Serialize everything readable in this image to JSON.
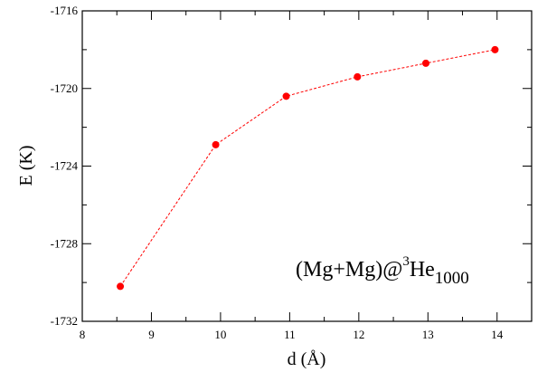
{
  "chart_data": {
    "type": "line",
    "title": "",
    "xlabel": "d (Å)",
    "ylabel": "E (K)",
    "xlim": [
      8,
      14.5
    ],
    "ylim": [
      -1732,
      -1716
    ],
    "x_ticks": [
      8,
      9,
      10,
      11,
      12,
      13,
      14
    ],
    "y_ticks": [
      -1732,
      -1728,
      -1724,
      -1720,
      -1716
    ],
    "grid": false,
    "line_style": "dashed",
    "colors": {
      "series": "#ff0000"
    },
    "series": [
      {
        "x": [
          8.55,
          9.93,
          10.95,
          11.98,
          12.97,
          13.97
        ],
        "y": [
          -1730.2,
          -1722.9,
          -1720.4,
          -1719.4,
          -1718.7,
          -1718.0
        ]
      }
    ],
    "annotation": {
      "base": "(Mg+Mg)@",
      "superscript": "3",
      "element": "He",
      "subscript": "1000"
    }
  }
}
